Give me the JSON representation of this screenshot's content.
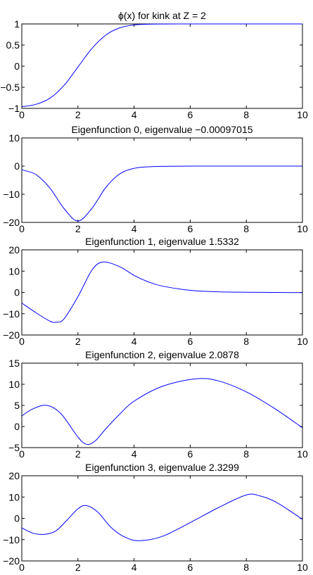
{
  "chart_data": [
    {
      "type": "line",
      "title": "ϕ(x) for kink at Z = 2",
      "xlim": [
        0,
        10
      ],
      "ylim": [
        -1,
        1
      ],
      "xticks": [
        "0",
        "2",
        "4",
        "6",
        "8",
        "10"
      ],
      "yticks": [
        "−1",
        "−0.5",
        "0",
        "0.5",
        "1"
      ],
      "ytick_values": [
        -1,
        -0.5,
        0,
        0.5,
        1
      ],
      "line_color": "#0000ff",
      "x": [
        0,
        0.5,
        1,
        1.5,
        2,
        2.5,
        3,
        3.5,
        4,
        4.5,
        5,
        6,
        7,
        8,
        9,
        10
      ],
      "y": [
        -0.96,
        -0.905,
        -0.76,
        -0.46,
        -0.02,
        0.42,
        0.74,
        0.91,
        0.975,
        0.993,
        0.998,
        1.0,
        1.0,
        1.0,
        1.0,
        1.0
      ]
    },
    {
      "type": "line",
      "title": "Eigenfunction 0, eigenvalue −0.00097015",
      "xlim": [
        0,
        10
      ],
      "ylim": [
        -20,
        10
      ],
      "xticks": [
        "0",
        "2",
        "4",
        "6",
        "8",
        "10"
      ],
      "yticks": [
        "−20",
        "−10",
        "0",
        "10"
      ],
      "ytick_values": [
        -20,
        -10,
        0,
        10
      ],
      "line_color": "#0000ff",
      "x": [
        0,
        0.5,
        1,
        1.5,
        2,
        2.5,
        3,
        3.5,
        4,
        4.5,
        5,
        6,
        7,
        8,
        9,
        10
      ],
      "y": [
        -1.3,
        -3.0,
        -7.8,
        -15.0,
        -19.5,
        -15.0,
        -7.5,
        -2.7,
        -0.8,
        -0.25,
        -0.08,
        0,
        0,
        0,
        0,
        0
      ]
    },
    {
      "type": "line",
      "title": "Eigenfunction 1, eigenvalue 1.5332",
      "xlim": [
        0,
        10
      ],
      "ylim": [
        -20,
        20
      ],
      "xticks": [
        "0",
        "2",
        "4",
        "6",
        "8",
        "10"
      ],
      "yticks": [
        "−20",
        "−10",
        "0",
        "10",
        "20"
      ],
      "ytick_values": [
        -20,
        -10,
        0,
        10,
        20
      ],
      "line_color": "#0000ff",
      "x": [
        0,
        0.5,
        1,
        1.2,
        1.5,
        2,
        2.5,
        2.9,
        3.5,
        4,
        4.5,
        5,
        6,
        7,
        8,
        9,
        10
      ],
      "y": [
        -5,
        -9.5,
        -13.5,
        -14,
        -12.5,
        -2,
        10.5,
        14.3,
        12,
        8,
        5,
        3,
        1,
        0.3,
        0.1,
        0,
        -0.1
      ]
    },
    {
      "type": "line",
      "title": "Eigenfunction 2, eigenvalue 2.0878",
      "xlim": [
        0,
        10
      ],
      "ylim": [
        -5,
        15
      ],
      "xticks": [
        "0",
        "2",
        "4",
        "6",
        "8",
        "10"
      ],
      "yticks": [
        "−5",
        "0",
        "5",
        "10",
        "15"
      ],
      "ytick_values": [
        -5,
        0,
        5,
        10,
        15
      ],
      "line_color": "#0000ff",
      "x": [
        0,
        0.4,
        0.9,
        1.4,
        2,
        2.3,
        2.6,
        3,
        3.5,
        4,
        5,
        6.2,
        7,
        8,
        9,
        10
      ],
      "y": [
        2.5,
        4.2,
        5,
        3,
        -2.5,
        -4.2,
        -3.5,
        -0.5,
        3,
        6,
        9.5,
        11.3,
        10.8,
        8.2,
        4.3,
        -0.3
      ]
    },
    {
      "type": "line",
      "title": "Eigenfunction 3, eigenvalue 2.3299",
      "xlim": [
        0,
        10
      ],
      "ylim": [
        -20,
        20
      ],
      "xticks": [
        "0",
        "2",
        "4",
        "6",
        "8",
        "10"
      ],
      "yticks": [
        "−20",
        "−10",
        "0",
        "10",
        "20"
      ],
      "ytick_values": [
        -20,
        -10,
        0,
        10,
        20
      ],
      "line_color": "#0000ff",
      "x": [
        0,
        0.4,
        0.8,
        1.2,
        1.6,
        2,
        2.3,
        2.7,
        3.2,
        3.7,
        4.2,
        5,
        6,
        7,
        8,
        8.5,
        9,
        9.5,
        10
      ],
      "y": [
        -4.5,
        -7,
        -7.5,
        -6,
        -1,
        4.5,
        6,
        3,
        -4.5,
        -9,
        -10.5,
        -8.5,
        -2,
        5,
        11,
        10.5,
        8,
        4,
        -0.5
      ]
    }
  ]
}
